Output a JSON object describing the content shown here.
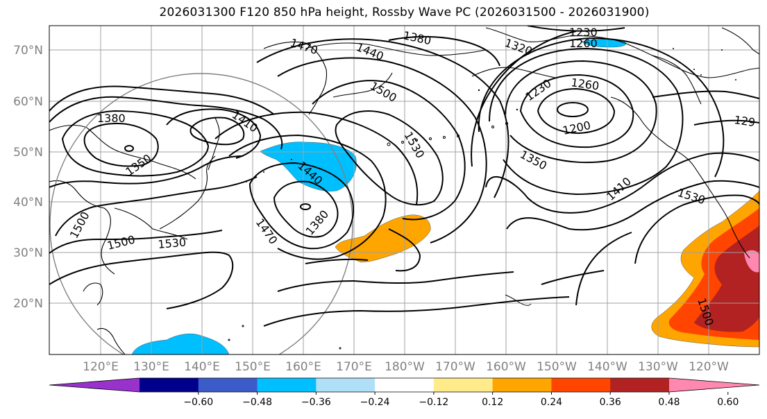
{
  "title": "2026031300 F120 850 hPa height, Rossby Wave PC (2026031500 - 2026031900)",
  "lat_labels": [
    "70°N",
    "60°N",
    "50°N",
    "40°N",
    "30°N",
    "20°N"
  ],
  "lon_labels": [
    "120°E",
    "130°E",
    "140°E",
    "150°E",
    "160°E",
    "170°E",
    "180°W",
    "170°W",
    "160°W",
    "150°W",
    "140°W",
    "130°W",
    "120°W"
  ],
  "colorbar": {
    "colors": [
      "#9932cc",
      "#00008b",
      "#3a5bc8",
      "#00bfff",
      "#b0e0f8",
      "#ffffff",
      "#ffeb8a",
      "#ffa500",
      "#ff4500",
      "#b22222",
      "#ff88b0"
    ],
    "ticks": [
      "−0.60",
      "−0.48",
      "−0.36",
      "−0.24",
      "−0.12",
      "0.12",
      "0.24",
      "0.36",
      "0.48",
      "0.60"
    ]
  },
  "contour_labels": [
    {
      "id": "c1380a",
      "text": "1380"
    },
    {
      "id": "c1350",
      "text": "1350"
    },
    {
      "id": "c1410a",
      "text": "1410"
    },
    {
      "id": "c1440a",
      "text": "1440"
    },
    {
      "id": "c1470a",
      "text": "1470"
    },
    {
      "id": "c1440b",
      "text": "1440"
    },
    {
      "id": "c1380b",
      "text": "1380"
    },
    {
      "id": "c1500a",
      "text": "1500"
    },
    {
      "id": "c1530a",
      "text": "1530"
    },
    {
      "id": "c1470b",
      "text": "1470"
    },
    {
      "id": "c1380c",
      "text": "1380"
    },
    {
      "id": "c1500b",
      "text": "1500"
    },
    {
      "id": "c1500c",
      "text": "1500"
    },
    {
      "id": "c1530b",
      "text": "1530"
    },
    {
      "id": "c1320",
      "text": "1320"
    },
    {
      "id": "c1230a",
      "text": "1230"
    },
    {
      "id": "c1260a",
      "text": "1260"
    },
    {
      "id": "c1230b",
      "text": "1230"
    },
    {
      "id": "c1260b",
      "text": "1260"
    },
    {
      "id": "c1200",
      "text": "1200"
    },
    {
      "id": "c1350b",
      "text": "1350"
    },
    {
      "id": "c1410b",
      "text": "1410"
    },
    {
      "id": "c1530c",
      "text": "1530"
    },
    {
      "id": "c129",
      "text": "129"
    },
    {
      "id": "c1500d",
      "text": "1500"
    }
  ]
}
